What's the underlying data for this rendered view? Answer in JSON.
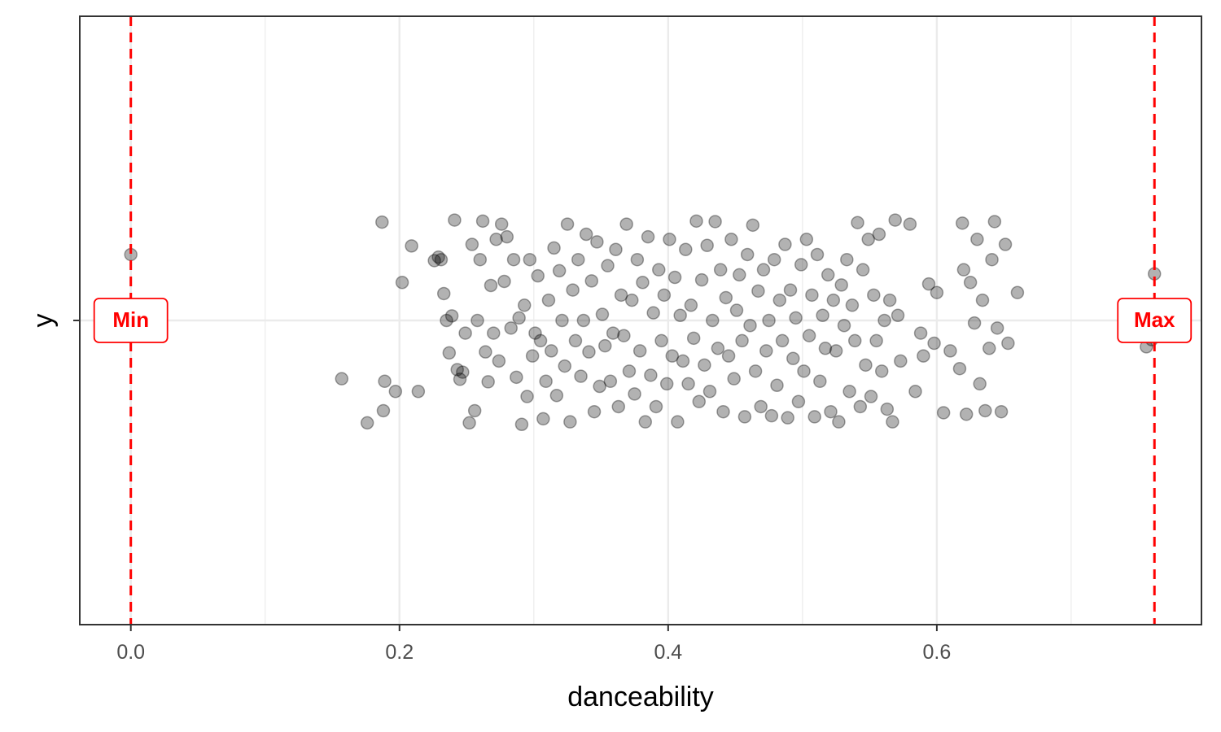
{
  "chart_data": {
    "type": "scatter",
    "title": "",
    "xlabel": "danceability",
    "ylabel": "y",
    "xlim": [
      -0.038,
      0.797
    ],
    "ylim": [
      0.4,
      1.6
    ],
    "x_ticks": [
      0.0,
      0.2,
      0.4,
      0.6
    ],
    "x_tick_labels": [
      "0.0",
      "0.2",
      "0.4",
      "0.6"
    ],
    "x_minor_gridlines": [
      0.1,
      0.3,
      0.5,
      0.7
    ],
    "y_ticks": [
      1.0
    ],
    "grid": true,
    "point_color": "#000000",
    "point_opacity": 0.3,
    "reference_lines": [
      {
        "label": "Min",
        "x": 0.0,
        "color": "#FF0000",
        "style": "dashed"
      },
      {
        "label": "Max",
        "x": 0.762,
        "color": "#FF0000",
        "style": "dashed"
      }
    ],
    "points": [
      [
        0.0,
        1.13
      ],
      [
        0.157,
        0.885
      ],
      [
        0.176,
        0.798
      ],
      [
        0.187,
        1.194
      ],
      [
        0.188,
        0.822
      ],
      [
        0.189,
        0.88
      ],
      [
        0.197,
        0.86
      ],
      [
        0.202,
        1.075
      ],
      [
        0.209,
        1.147
      ],
      [
        0.214,
        0.86
      ],
      [
        0.226,
        1.118
      ],
      [
        0.229,
        1.125
      ],
      [
        0.231,
        1.12
      ],
      [
        0.233,
        1.053
      ],
      [
        0.235,
        1.0
      ],
      [
        0.237,
        0.936
      ],
      [
        0.239,
        1.009
      ],
      [
        0.241,
        1.198
      ],
      [
        0.243,
        0.903
      ],
      [
        0.245,
        0.884
      ],
      [
        0.247,
        0.898
      ],
      [
        0.249,
        0.975
      ],
      [
        0.252,
        0.798
      ],
      [
        0.254,
        1.15
      ],
      [
        0.256,
        0.822
      ],
      [
        0.258,
        1.0
      ],
      [
        0.26,
        1.12
      ],
      [
        0.262,
        1.196
      ],
      [
        0.264,
        0.938
      ],
      [
        0.266,
        0.879
      ],
      [
        0.268,
        1.069
      ],
      [
        0.27,
        0.975
      ],
      [
        0.272,
        1.16
      ],
      [
        0.274,
        0.92
      ],
      [
        0.276,
        1.19
      ],
      [
        0.278,
        1.077
      ],
      [
        0.28,
        1.165
      ],
      [
        0.283,
        0.985
      ],
      [
        0.285,
        1.12
      ],
      [
        0.287,
        0.888
      ],
      [
        0.289,
        1.005
      ],
      [
        0.291,
        0.795
      ],
      [
        0.293,
        1.03
      ],
      [
        0.295,
        0.85
      ],
      [
        0.297,
        1.12
      ],
      [
        0.299,
        0.93
      ],
      [
        0.301,
        0.975
      ],
      [
        0.303,
        1.088
      ],
      [
        0.305,
        0.96
      ],
      [
        0.307,
        0.806
      ],
      [
        0.309,
        0.88
      ],
      [
        0.311,
        1.04
      ],
      [
        0.313,
        0.94
      ],
      [
        0.315,
        1.143
      ],
      [
        0.317,
        0.852
      ],
      [
        0.319,
        1.098
      ],
      [
        0.321,
        1.0
      ],
      [
        0.323,
        0.91
      ],
      [
        0.325,
        1.19
      ],
      [
        0.327,
        0.8
      ],
      [
        0.329,
        1.06
      ],
      [
        0.331,
        0.96
      ],
      [
        0.333,
        1.12
      ],
      [
        0.335,
        0.89
      ],
      [
        0.337,
        1.0
      ],
      [
        0.339,
        1.17
      ],
      [
        0.341,
        0.938
      ],
      [
        0.343,
        1.078
      ],
      [
        0.345,
        0.82
      ],
      [
        0.347,
        1.155
      ],
      [
        0.349,
        0.87
      ],
      [
        0.351,
        1.012
      ],
      [
        0.353,
        0.95
      ],
      [
        0.355,
        1.108
      ],
      [
        0.357,
        0.88
      ],
      [
        0.359,
        0.975
      ],
      [
        0.361,
        1.14
      ],
      [
        0.363,
        0.83
      ],
      [
        0.365,
        1.05
      ],
      [
        0.367,
        0.97
      ],
      [
        0.369,
        1.19
      ],
      [
        0.371,
        0.9
      ],
      [
        0.373,
        1.04
      ],
      [
        0.375,
        0.855
      ],
      [
        0.377,
        1.12
      ],
      [
        0.379,
        0.94
      ],
      [
        0.381,
        1.075
      ],
      [
        0.383,
        0.8
      ],
      [
        0.385,
        1.165
      ],
      [
        0.387,
        0.892
      ],
      [
        0.389,
        1.015
      ],
      [
        0.391,
        0.83
      ],
      [
        0.393,
        1.1
      ],
      [
        0.395,
        0.96
      ],
      [
        0.397,
        1.05
      ],
      [
        0.399,
        0.875
      ],
      [
        0.401,
        1.16
      ],
      [
        0.403,
        0.93
      ],
      [
        0.405,
        1.085
      ],
      [
        0.407,
        0.8
      ],
      [
        0.409,
        1.01
      ],
      [
        0.411,
        0.92
      ],
      [
        0.413,
        1.14
      ],
      [
        0.415,
        0.875
      ],
      [
        0.417,
        1.03
      ],
      [
        0.419,
        0.965
      ],
      [
        0.421,
        1.196
      ],
      [
        0.423,
        0.84
      ],
      [
        0.425,
        1.08
      ],
      [
        0.427,
        0.912
      ],
      [
        0.429,
        1.148
      ],
      [
        0.431,
        0.86
      ],
      [
        0.433,
        1.0
      ],
      [
        0.435,
        1.195
      ],
      [
        0.437,
        0.945
      ],
      [
        0.439,
        1.1
      ],
      [
        0.441,
        0.82
      ],
      [
        0.443,
        1.045
      ],
      [
        0.445,
        0.93
      ],
      [
        0.447,
        1.16
      ],
      [
        0.449,
        0.885
      ],
      [
        0.451,
        1.02
      ],
      [
        0.453,
        1.09
      ],
      [
        0.455,
        0.96
      ],
      [
        0.457,
        0.81
      ],
      [
        0.459,
        1.13
      ],
      [
        0.461,
        0.99
      ],
      [
        0.463,
        1.188
      ],
      [
        0.465,
        0.9
      ],
      [
        0.467,
        1.058
      ],
      [
        0.469,
        0.83
      ],
      [
        0.471,
        1.1
      ],
      [
        0.473,
        0.94
      ],
      [
        0.475,
        1.0
      ],
      [
        0.477,
        0.812
      ],
      [
        0.479,
        1.12
      ],
      [
        0.481,
        0.872
      ],
      [
        0.483,
        1.04
      ],
      [
        0.485,
        0.96
      ],
      [
        0.487,
        1.15
      ],
      [
        0.489,
        0.808
      ],
      [
        0.491,
        1.06
      ],
      [
        0.493,
        0.925
      ],
      [
        0.495,
        1.005
      ],
      [
        0.497,
        0.84
      ],
      [
        0.499,
        1.11
      ],
      [
        0.501,
        0.9
      ],
      [
        0.503,
        1.16
      ],
      [
        0.505,
        0.97
      ],
      [
        0.507,
        1.05
      ],
      [
        0.509,
        0.81
      ],
      [
        0.511,
        1.13
      ],
      [
        0.513,
        0.88
      ],
      [
        0.515,
        1.01
      ],
      [
        0.517,
        0.945
      ],
      [
        0.519,
        1.09
      ],
      [
        0.521,
        0.82
      ],
      [
        0.523,
        1.04
      ],
      [
        0.525,
        0.94
      ],
      [
        0.527,
        0.8
      ],
      [
        0.529,
        1.07
      ],
      [
        0.531,
        0.99
      ],
      [
        0.533,
        1.12
      ],
      [
        0.535,
        0.86
      ],
      [
        0.537,
        1.03
      ],
      [
        0.539,
        0.96
      ],
      [
        0.541,
        1.193
      ],
      [
        0.543,
        0.83
      ],
      [
        0.545,
        1.1
      ],
      [
        0.547,
        0.912
      ],
      [
        0.549,
        1.16
      ],
      [
        0.551,
        0.85
      ],
      [
        0.553,
        1.05
      ],
      [
        0.555,
        0.96
      ],
      [
        0.557,
        1.17
      ],
      [
        0.559,
        0.9
      ],
      [
        0.561,
        1.0
      ],
      [
        0.563,
        0.825
      ],
      [
        0.565,
        1.04
      ],
      [
        0.567,
        0.8
      ],
      [
        0.569,
        1.198
      ],
      [
        0.571,
        1.01
      ],
      [
        0.573,
        0.92
      ],
      [
        0.58,
        1.19
      ],
      [
        0.584,
        0.86
      ],
      [
        0.588,
        0.975
      ],
      [
        0.59,
        0.93
      ],
      [
        0.594,
        1.072
      ],
      [
        0.598,
        0.955
      ],
      [
        0.6,
        1.055
      ],
      [
        0.605,
        0.818
      ],
      [
        0.61,
        0.94
      ],
      [
        0.617,
        0.905
      ],
      [
        0.619,
        1.192
      ],
      [
        0.62,
        1.1
      ],
      [
        0.622,
        0.815
      ],
      [
        0.625,
        1.075
      ],
      [
        0.628,
        0.995
      ],
      [
        0.63,
        1.16
      ],
      [
        0.632,
        0.875
      ],
      [
        0.634,
        1.04
      ],
      [
        0.636,
        0.822
      ],
      [
        0.639,
        0.945
      ],
      [
        0.641,
        1.12
      ],
      [
        0.643,
        1.195
      ],
      [
        0.645,
        0.985
      ],
      [
        0.648,
        0.82
      ],
      [
        0.651,
        1.15
      ],
      [
        0.653,
        0.955
      ],
      [
        0.66,
        1.055
      ],
      [
        0.756,
        0.948
      ],
      [
        0.76,
        0.962
      ],
      [
        0.762,
        1.092
      ]
    ]
  }
}
